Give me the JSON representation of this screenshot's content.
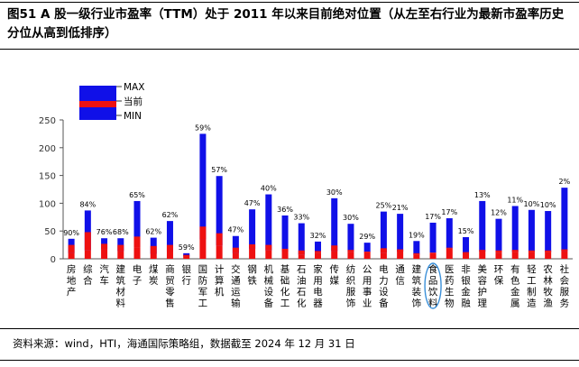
{
  "figure": {
    "title": "图51 A 股一级行业市盈率（TTM）处于 2011 年以来目前绝对位置（从左至右行业为最新市盈率历史分位从高到低排序）",
    "source": "资料来源：wind，HTI，海通国际策略组，数据截至 2024 年 12 月 31 日"
  },
  "colors": {
    "range_bar": "#1010e8",
    "current_bar": "#ee1111",
    "highlight_circle": "#3a8fd8"
  },
  "chart_data": {
    "type": "bar",
    "title": "",
    "xlabel": "",
    "ylabel": "",
    "ylim": [
      0,
      250
    ],
    "yticks": [
      0,
      50,
      100,
      150,
      200,
      250
    ],
    "grid": false,
    "legend_position": "top-left",
    "legend": [
      "MAX",
      "当前",
      "MIN"
    ],
    "highlight_category": "食品饮料",
    "categories": [
      "房地产",
      "综合",
      "汽车",
      "建筑材料",
      "电子",
      "煤炭",
      "商贸零售",
      "银行",
      "国防军工",
      "计算机",
      "交通运输",
      "钢铁",
      "机械设备",
      "基础化工",
      "石油石化",
      "家用电器",
      "传媒",
      "纺织服饰",
      "公用事业",
      "电力设备",
      "通信",
      "建筑装饰",
      "食品饮料",
      "医药生物",
      "非银金融",
      "美容护理",
      "环保",
      "有色金属",
      "轻工制造",
      "农林牧渔",
      "社会服务"
    ],
    "category_labels": [
      "房地产",
      "综合",
      "汽车",
      "建筑材料",
      "电子",
      "煤炭",
      "商贸零售",
      "银行",
      "国防军工",
      "计算机",
      "交通运输",
      "钢铁",
      "机械设备",
      "基础化工",
      "石油石化",
      "家用电器",
      "传媒",
      "纺织服饰",
      "公用事业",
      "电力设备",
      "通信",
      "建筑装饰",
      "食品饮料",
      "医药生物",
      "非银金融",
      "美容护理",
      "环保",
      "有色金属",
      "轻工制造",
      "农林牧渔",
      "社会服务"
    ],
    "percentile_labels": [
      "90%",
      "84%",
      "76%",
      "68%",
      "65%",
      "62%",
      "62%",
      "59%",
      "59%",
      "57%",
      "47%",
      "47%",
      "40%",
      "36%",
      "33%",
      "32%",
      "30%",
      "30%",
      "29%",
      "25%",
      "21%",
      "19%",
      "17%",
      "17%",
      "15%",
      "13%",
      "12%",
      "11%",
      "10%",
      "10%",
      "2%"
    ],
    "series": [
      {
        "name": "MAX",
        "values": [
          36,
          87,
          37,
          37,
          104,
          38,
          68,
          10,
          225,
          149,
          41,
          89,
          116,
          78,
          64,
          31,
          109,
          63,
          29,
          85,
          81,
          32,
          65,
          73,
          39,
          104,
          72,
          95,
          88,
          86,
          128
        ]
      },
      {
        "name": "当前",
        "values": [
          25,
          48,
          27,
          25,
          40,
          23,
          25,
          7,
          58,
          46,
          20,
          26,
          25,
          18,
          15,
          14,
          24,
          16,
          13,
          19,
          17,
          10,
          11,
          20,
          12,
          16,
          15,
          16,
          15,
          15,
          17
        ]
      },
      {
        "name": "MIN",
        "values": [
          10,
          15,
          17,
          14,
          21,
          9,
          13,
          4,
          35,
          24,
          10,
          18,
          15,
          13,
          7,
          11,
          14,
          12,
          12,
          11,
          13,
          7,
          11,
          19,
          9,
          13,
          11,
          12,
          12,
          12,
          14
        ]
      }
    ]
  }
}
